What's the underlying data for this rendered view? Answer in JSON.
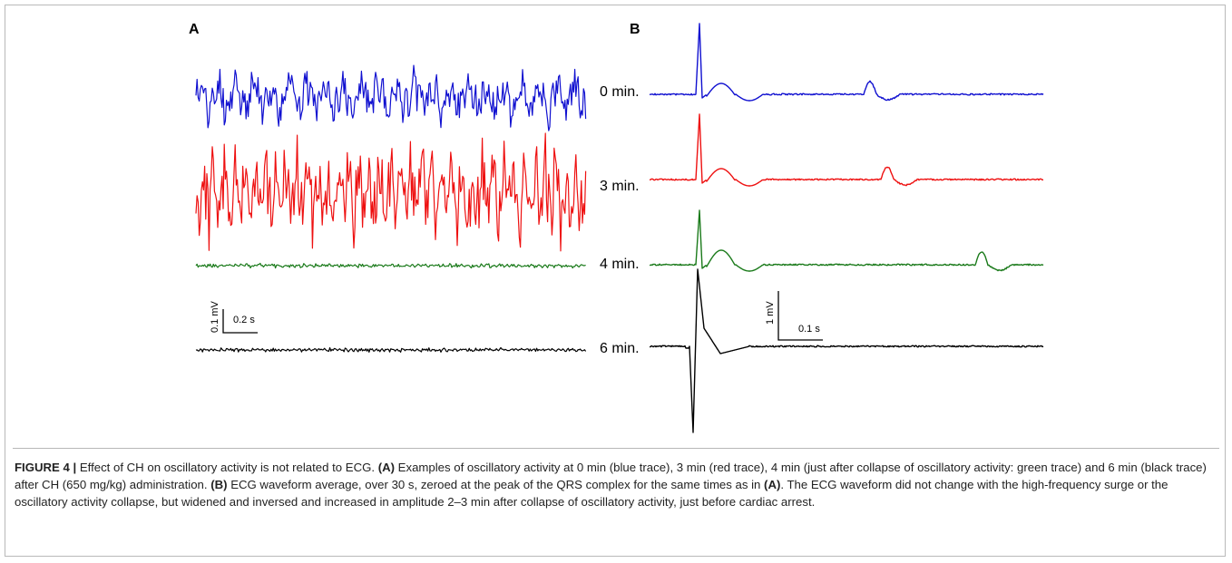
{
  "panels": {
    "a_label": "A",
    "b_label": "B"
  },
  "traces": [
    {
      "time_label": "0 min.",
      "color": "#1010d0"
    },
    {
      "time_label": "3 min.",
      "color": "#ee1010"
    },
    {
      "time_label": "4 min.",
      "color": "#1a7a1a"
    },
    {
      "time_label": "6 min.",
      "color": "#000000"
    }
  ],
  "scale_bars": {
    "a_amplitude": "0.1 mV",
    "a_time": "0.2 s",
    "b_amplitude": "1 mV",
    "b_time": "0.1 s"
  },
  "caption": {
    "figure_label": "FIGURE 4 |",
    "s1": " Effect of CH on oscillatory activity is not related to ECG. ",
    "ref_a": "(A)",
    "s2": " Examples of oscillatory activity at 0 min (blue trace), 3 min (red trace), 4 min (just after collapse of oscillatory activity: green trace) and 6 min (black trace) after CH (650 mg/kg) administration. ",
    "ref_b": "(B)",
    "s3": " ECG waveform average, over 30 s, zeroed at the peak of the QRS complex for the same times as in ",
    "ref_a2": "(A)",
    "s4": ". The ECG waveform did not change with the high-frequency surge or the oscillatory activity collapse, but widened and inversed and increased in amplitude 2–3 min after collapse of oscillatory activity, just before cardiac arrest."
  }
}
